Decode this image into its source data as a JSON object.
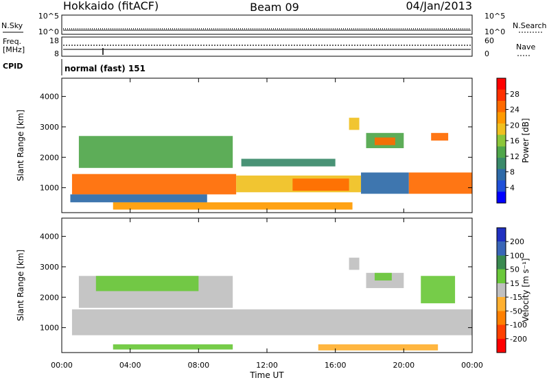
{
  "header": {
    "site": "Hokkaido (fitACF)",
    "beam": "Beam 09",
    "date": "04/Jan/2013"
  },
  "params": {
    "nsky_label": "N.Sky",
    "nsearch_label": "N.Search",
    "freq_label": "Freq.",
    "freq_unit": "[MHz]",
    "nave_label": "Nave",
    "cpid_label": "CPID",
    "cpid_value": "normal (fast) 151",
    "left_ticks": {
      "noise_top": "10^5",
      "noise_bottom": "10^0",
      "freq_top": "18",
      "freq_bottom": "8"
    },
    "right_ticks": {
      "noise_top": "10^5",
      "noise_bottom": "10^0",
      "nave_top": "60",
      "nave_bottom": "0"
    }
  },
  "colors": {
    "power": [
      "#0000ff",
      "#1f4fd8",
      "#2e6aa8",
      "#3a8a6a",
      "#4fa64a",
      "#8cc63a",
      "#f0c020",
      "#ff9a00",
      "#ff6a00",
      "#ff3000",
      "#ff0000"
    ],
    "velocity": [
      "#2030c0",
      "#3a66b8",
      "#3a8a50",
      "#6ac83a",
      "#c0c0c0",
      "#ffb030",
      "#ff8000",
      "#ff4000",
      "#ff0000"
    ]
  },
  "chart_data": [
    {
      "type": "heatmap",
      "parameter": "Power",
      "ylabel": "Slant Range [km]",
      "ylim": [
        180,
        4600
      ],
      "yticks": [
        "1000",
        "2000",
        "3000",
        "4000"
      ],
      "xlim": [
        "00:00",
        "24:00"
      ],
      "colorbar": {
        "label": "Power [dB]",
        "ticks": [
          "4",
          "8",
          "12",
          "16",
          "20",
          "24",
          "28"
        ],
        "range": [
          0,
          32
        ]
      },
      "regions": [
        {
          "t0": 0.6,
          "t1": 10.2,
          "r0": 780,
          "r1": 1450,
          "value": 26
        },
        {
          "t0": 10.2,
          "t1": 17.5,
          "r0": 850,
          "r1": 1400,
          "value": 18
        },
        {
          "t0": 13.5,
          "t1": 16.8,
          "r0": 900,
          "r1": 1300,
          "value": 26
        },
        {
          "t0": 17.5,
          "t1": 20.3,
          "r0": 800,
          "r1": 1500,
          "value": 8
        },
        {
          "t0": 20.3,
          "t1": 24.0,
          "r0": 800,
          "r1": 1500,
          "value": 24
        },
        {
          "t0": 1.0,
          "t1": 10.0,
          "r0": 1650,
          "r1": 2700,
          "value": 12
        },
        {
          "t0": 10.5,
          "t1": 16.0,
          "r0": 1700,
          "r1": 1950,
          "value": 10
        },
        {
          "t0": 17.8,
          "t1": 20.0,
          "r0": 2300,
          "r1": 2800,
          "value": 14
        },
        {
          "t0": 18.3,
          "t1": 19.5,
          "r0": 2400,
          "r1": 2650,
          "value": 24
        },
        {
          "t0": 16.8,
          "t1": 17.4,
          "r0": 2900,
          "r1": 3300,
          "value": 18
        },
        {
          "t0": 21.6,
          "t1": 22.6,
          "r0": 2550,
          "r1": 2800,
          "value": 26
        },
        {
          "t0": 3.0,
          "t1": 17.0,
          "r0": 280,
          "r1": 520,
          "value": 22
        },
        {
          "t0": 0.5,
          "t1": 8.5,
          "r0": 520,
          "r1": 780,
          "value": 6
        }
      ]
    },
    {
      "type": "heatmap",
      "parameter": "Velocity",
      "ylabel": "Slant Range [km]",
      "ylim": [
        180,
        4600
      ],
      "yticks": [
        "1000",
        "2000",
        "3000",
        "4000"
      ],
      "xlabel": "Time UT",
      "xticks": [
        "00:00",
        "04:00",
        "08:00",
        "12:00",
        "16:00",
        "20:00",
        "00:00"
      ],
      "colorbar": {
        "label": "Velocity [m s⁻¹]",
        "ticks": [
          "200",
          "100",
          "50",
          "15",
          "-15",
          "-50",
          "-100",
          "-200"
        ],
        "range": [
          -250,
          250
        ]
      },
      "regions": [
        {
          "t0": 0.6,
          "t1": 24.0,
          "r0": 750,
          "r1": 1600,
          "value": 0
        },
        {
          "t0": 1.0,
          "t1": 10.0,
          "r0": 1650,
          "r1": 2700,
          "value": 0
        },
        {
          "t0": 2.0,
          "t1": 8.0,
          "r0": 2200,
          "r1": 2700,
          "value": 30
        },
        {
          "t0": 17.8,
          "t1": 20.0,
          "r0": 2300,
          "r1": 2800,
          "value": 0
        },
        {
          "t0": 18.3,
          "t1": 19.3,
          "r0": 2550,
          "r1": 2800,
          "value": 30
        },
        {
          "t0": 21.0,
          "t1": 23.0,
          "r0": 1800,
          "r1": 2700,
          "value": 30
        },
        {
          "t0": 16.8,
          "t1": 17.4,
          "r0": 2900,
          "r1": 3300,
          "value": 0
        },
        {
          "t0": 15.0,
          "t1": 22.0,
          "r0": 250,
          "r1": 450,
          "value": -60
        },
        {
          "t0": 3.0,
          "t1": 10.0,
          "r0": 280,
          "r1": 450,
          "value": 30
        }
      ]
    }
  ]
}
